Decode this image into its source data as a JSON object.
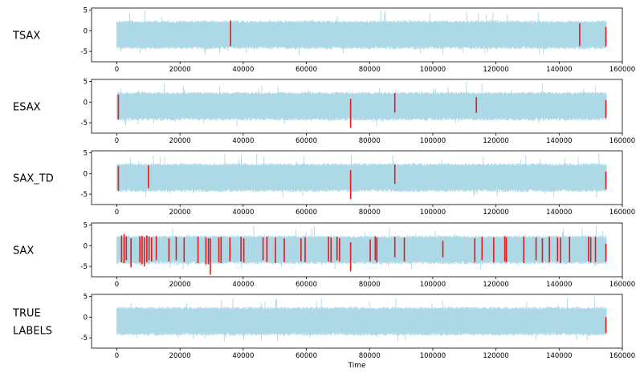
{
  "chart_data": {
    "type": "line",
    "xlabel": "Time",
    "xlim": [
      -8000,
      160000
    ],
    "x_ticks": [
      0,
      20000,
      40000,
      60000,
      80000,
      100000,
      120000,
      140000,
      160000
    ],
    "y_ticks": [
      5,
      0,
      -5
    ],
    "ylim": [
      -7.5,
      5.5
    ],
    "signal": {
      "color": "#add8e6",
      "x_range": [
        0,
        155000
      ],
      "band": [
        -4.5,
        2.5
      ],
      "extremes": [
        -7,
        5
      ]
    },
    "marker_color": "#e41a1c",
    "panels": [
      {
        "label_lines": [
          "TSAX"
        ],
        "markers": [
          {
            "x": 36000,
            "y": [
              -3.7,
              2.5
            ]
          },
          {
            "x": 146500,
            "y": [
              -3.7,
              1.8
            ]
          },
          {
            "x": 154800,
            "y": [
              -3.8,
              0.9
            ]
          }
        ]
      },
      {
        "label_lines": [
          "ESAX"
        ],
        "markers": [
          {
            "x": 500,
            "y": [
              -4.2,
              1.8
            ]
          },
          {
            "x": 74000,
            "y": [
              -6.2,
              0.8
            ]
          },
          {
            "x": 88000,
            "y": [
              -2.5,
              2.2
            ]
          },
          {
            "x": 113800,
            "y": [
              -2.6,
              1.2
            ]
          },
          {
            "x": 154800,
            "y": [
              -3.8,
              0.5
            ]
          }
        ]
      },
      {
        "label_lines": [
          "SAX_TD"
        ],
        "markers": [
          {
            "x": 500,
            "y": [
              -4.2,
              1.8
            ]
          },
          {
            "x": 10000,
            "y": [
              -3.5,
              2.0
            ]
          },
          {
            "x": 74000,
            "y": [
              -6.2,
              0.8
            ]
          },
          {
            "x": 88000,
            "y": [
              -2.5,
              2.2
            ]
          },
          {
            "x": 154800,
            "y": [
              -3.8,
              0.5
            ]
          }
        ]
      },
      {
        "label_lines": [
          "SAX"
        ],
        "markers": [
          {
            "x": 1500,
            "y": [
              -4.0,
              2.5
            ]
          },
          {
            "x": 2300,
            "y": [
              -4.2,
              2.8
            ]
          },
          {
            "x": 3000,
            "y": [
              -3.5,
              2.3
            ]
          },
          {
            "x": 4500,
            "y": [
              -5.2,
              1.8
            ]
          },
          {
            "x": 7300,
            "y": [
              -4.0,
              2.2
            ]
          },
          {
            "x": 8000,
            "y": [
              -4.5,
              2.4
            ]
          },
          {
            "x": 8700,
            "y": [
              -5.0,
              2.0
            ]
          },
          {
            "x": 9500,
            "y": [
              -4.0,
              2.5
            ]
          },
          {
            "x": 10200,
            "y": [
              -3.5,
              2.2
            ]
          },
          {
            "x": 11000,
            "y": [
              -3.8,
              2.0
            ]
          },
          {
            "x": 12500,
            "y": [
              -3.5,
              2.3
            ]
          },
          {
            "x": 16500,
            "y": [
              -3.8,
              1.8
            ]
          },
          {
            "x": 18800,
            "y": [
              -3.5,
              2.2
            ]
          },
          {
            "x": 21300,
            "y": [
              -4.0,
              2.0
            ]
          },
          {
            "x": 25700,
            "y": [
              -4.2,
              2.2
            ]
          },
          {
            "x": 28200,
            "y": [
              -4.5,
              2.0
            ]
          },
          {
            "x": 29000,
            "y": [
              -4.5,
              1.8
            ]
          },
          {
            "x": 29600,
            "y": [
              -7.0,
              1.8
            ]
          },
          {
            "x": 32300,
            "y": [
              -4.0,
              2.0
            ]
          },
          {
            "x": 33000,
            "y": [
              -4.2,
              2.2
            ]
          },
          {
            "x": 35800,
            "y": [
              -3.8,
              2.0
            ]
          },
          {
            "x": 39300,
            "y": [
              -3.8,
              2.2
            ]
          },
          {
            "x": 40200,
            "y": [
              -4.0,
              1.8
            ]
          },
          {
            "x": 46300,
            "y": [
              -3.5,
              2.0
            ]
          },
          {
            "x": 47500,
            "y": [
              -4.0,
              2.2
            ]
          },
          {
            "x": 50200,
            "y": [
              -4.2,
              2.0
            ]
          },
          {
            "x": 53000,
            "y": [
              -4.0,
              1.8
            ]
          },
          {
            "x": 58300,
            "y": [
              -3.8,
              1.8
            ]
          },
          {
            "x": 59600,
            "y": [
              -4.0,
              2.0
            ]
          },
          {
            "x": 67000,
            "y": [
              -3.8,
              2.2
            ]
          },
          {
            "x": 67800,
            "y": [
              -4.0,
              2.0
            ]
          },
          {
            "x": 69700,
            "y": [
              -3.5,
              2.2
            ]
          },
          {
            "x": 70500,
            "y": [
              -3.8,
              1.8
            ]
          },
          {
            "x": 74000,
            "y": [
              -6.2,
              0.8
            ]
          },
          {
            "x": 80200,
            "y": [
              -3.8,
              1.5
            ]
          },
          {
            "x": 81800,
            "y": [
              -3.5,
              2.3
            ]
          },
          {
            "x": 82300,
            "y": [
              -4.0,
              2.0
            ]
          },
          {
            "x": 88000,
            "y": [
              -2.8,
              2.2
            ]
          },
          {
            "x": 91000,
            "y": [
              -3.8,
              2.0
            ]
          },
          {
            "x": 103200,
            "y": [
              -2.8,
              1.2
            ]
          },
          {
            "x": 113300,
            "y": [
              -4.0,
              1.8
            ]
          },
          {
            "x": 115600,
            "y": [
              -3.5,
              2.2
            ]
          },
          {
            "x": 119300,
            "y": [
              -4.0,
              2.0
            ]
          },
          {
            "x": 122800,
            "y": [
              -3.8,
              2.3
            ]
          },
          {
            "x": 123300,
            "y": [
              -4.0,
              2.0
            ]
          },
          {
            "x": 128800,
            "y": [
              -4.2,
              2.2
            ]
          },
          {
            "x": 132700,
            "y": [
              -3.5,
              2.0
            ]
          },
          {
            "x": 134700,
            "y": [
              -4.0,
              1.8
            ]
          },
          {
            "x": 136900,
            "y": [
              -4.0,
              2.2
            ]
          },
          {
            "x": 139500,
            "y": [
              -3.8,
              2.0
            ]
          },
          {
            "x": 140400,
            "y": [
              -4.2,
              2.0
            ]
          },
          {
            "x": 143300,
            "y": [
              -4.0,
              2.2
            ]
          },
          {
            "x": 149300,
            "y": [
              -3.8,
              2.2
            ]
          },
          {
            "x": 150000,
            "y": [
              -4.0,
              2.0
            ]
          },
          {
            "x": 151500,
            "y": [
              -4.0,
              2.2
            ]
          },
          {
            "x": 154800,
            "y": [
              -3.8,
              0.5
            ]
          }
        ]
      },
      {
        "label_lines": [
          "TRUE",
          "LABELS"
        ],
        "markers": [
          {
            "x": 154800,
            "y": [
              -3.8,
              0.0
            ]
          }
        ]
      }
    ]
  }
}
